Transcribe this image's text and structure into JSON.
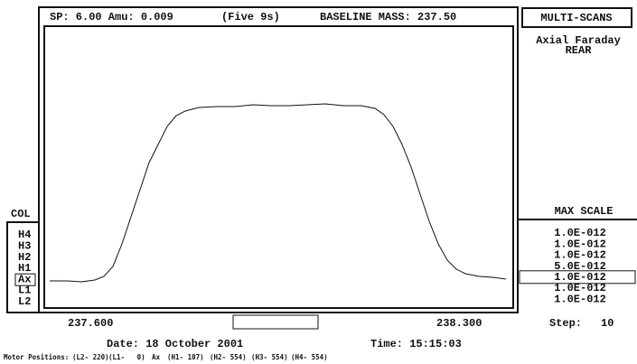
{
  "header": {
    "scan_params": "SP: 6.00 Amu: 0.009",
    "mode": "(Five 9s)",
    "baseline": "BASELINE MASS: 237.50"
  },
  "panel": {
    "title": "MULTI-SCANS",
    "detector": "Axial Faraday",
    "position": "REAR",
    "max_scale_label": "MAX SCALE",
    "scales": [
      "1.0E-012",
      "1.0E-012",
      "1.0E-012",
      "5.0E-012",
      "1.0E-012",
      "1.0E-012",
      "1.0E-012"
    ]
  },
  "collectors": {
    "label": "COL",
    "items": [
      "H4",
      "H3",
      "H2",
      "H1",
      "Ax",
      "L1",
      "L2"
    ]
  },
  "axis": {
    "start": "237.600",
    "end": "238.300"
  },
  "step": {
    "label": "Step:",
    "value": "10"
  },
  "footer": {
    "date": "Date: 18 October 2001",
    "time": "Time: 15:15:03",
    "motor_label": "Motor Positions:",
    "motors": [
      "(L2- 220)",
      "(L1-   0)",
      "Ax",
      "(H1- 107)",
      "(H2- 554)",
      "(H3- 554)",
      "(H4- 554)"
    ]
  }
}
